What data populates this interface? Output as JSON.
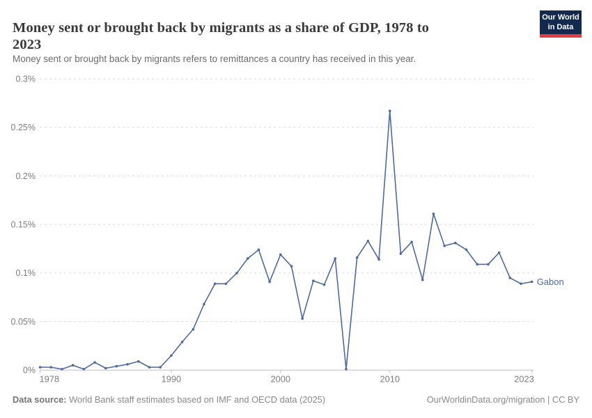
{
  "header": {
    "title": "Money sent or brought back by migrants as a share of GDP, 1978 to 2023",
    "title_line1": "Money sent or brought back by migrants as a share of GDP, 1978 to",
    "title_line2": "2023",
    "subtitle": "Money sent or brought back by migrants refers to remittances a country has received in this year.",
    "logo": {
      "line1": "Our World",
      "line2": "in Data"
    }
  },
  "chart_data": {
    "type": "line",
    "title": "Money sent or brought back by migrants as a share of GDP, 1978 to 2023",
    "xlabel": "",
    "ylabel": "",
    "unit": "%",
    "xlim": [
      1978,
      2023
    ],
    "ylim": [
      0,
      0.3
    ],
    "grid": "horizontal-dashed",
    "legend_position": "line-end-label",
    "x": [
      1978,
      1979,
      1980,
      1981,
      1982,
      1983,
      1984,
      1985,
      1986,
      1987,
      1988,
      1989,
      1990,
      1991,
      1992,
      1993,
      1994,
      1995,
      1996,
      1997,
      1998,
      1999,
      2000,
      2001,
      2002,
      2003,
      2004,
      2005,
      2006,
      2007,
      2008,
      2009,
      2010,
      2011,
      2012,
      2013,
      2014,
      2015,
      2016,
      2017,
      2018,
      2019,
      2020,
      2021,
      2022,
      2023
    ],
    "series": [
      {
        "name": "Gabon",
        "color": "#4c6a9f",
        "values": [
          0.003,
          0.003,
          0.001,
          0.005,
          0.001,
          0.008,
          0.002,
          0.004,
          0.006,
          0.009,
          0.003,
          0.003,
          0.015,
          0.029,
          0.042,
          0.068,
          0.089,
          0.089,
          0.1,
          0.115,
          0.124,
          0.091,
          0.119,
          0.107,
          0.053,
          0.092,
          0.088,
          0.115,
          0.001,
          0.116,
          0.133,
          0.114,
          0.267,
          0.12,
          0.132,
          0.093,
          0.161,
          0.128,
          0.131,
          0.124,
          0.109,
          0.109,
          0.121,
          0.095,
          0.089,
          0.091
        ]
      }
    ],
    "y_ticks": [
      {
        "value": 0,
        "label": "0%"
      },
      {
        "value": 0.05,
        "label": "0.05%"
      },
      {
        "value": 0.1,
        "label": "0.1%"
      },
      {
        "value": 0.15,
        "label": "0.15%"
      },
      {
        "value": 0.2,
        "label": "0.2%"
      },
      {
        "value": 0.25,
        "label": "0.25%"
      },
      {
        "value": 0.3,
        "label": "0.3%"
      }
    ],
    "x_ticks": [
      {
        "year": 1978,
        "label": "1978"
      },
      {
        "year": 1990,
        "label": "1990"
      },
      {
        "year": 2000,
        "label": "2000"
      },
      {
        "year": 2010,
        "label": "2010"
      },
      {
        "year": 2023,
        "label": "2023"
      }
    ]
  },
  "footer": {
    "source_label": "Data source:",
    "source_text": " World Bank staff estimates based on IMF and OECD data (2025)",
    "right_text": "OurWorldinData.org/migration | CC BY"
  },
  "colors": {
    "line": "#4c6a9f",
    "gridline": "#dadada",
    "axis": "#c0c0c0",
    "tick_label": "#7d7d7d",
    "title": "#3a3a3a",
    "subtitle": "#6b6b6b",
    "logo_navy": "#13294d",
    "logo_red": "#dc3e42",
    "footer_text": "#8a8a8a"
  }
}
